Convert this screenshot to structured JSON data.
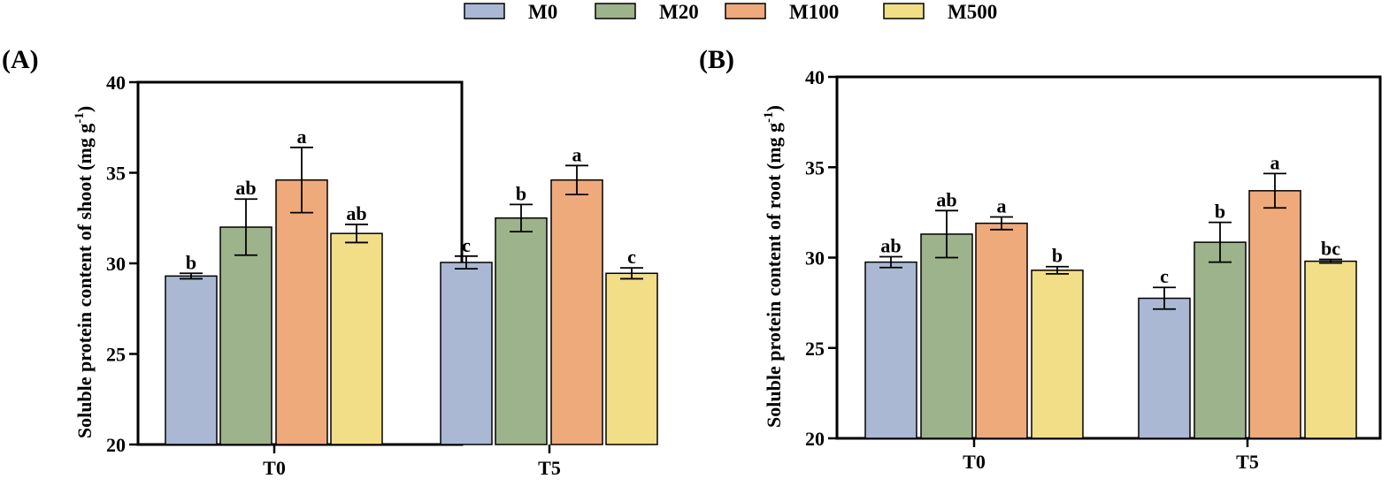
{
  "legend": {
    "entries": [
      {
        "label": "M0",
        "color": "#aab8d4"
      },
      {
        "label": "M20",
        "color": "#9db38b"
      },
      {
        "label": "M100",
        "color": "#eeaa7b"
      },
      {
        "label": "M500",
        "color": "#f2de86"
      }
    ]
  },
  "chart_data": [
    {
      "type": "bar",
      "panel_label": "(A)",
      "ylabel": "Soluble protein content of shoot (mg g",
      "ylabel_sup": "-1",
      "ylabel_close": ")",
      "ylim": [
        20,
        40
      ],
      "yticks": [
        20,
        25,
        30,
        35,
        40
      ],
      "categories": [
        "T0",
        "T5"
      ],
      "series": [
        {
          "name": "M0",
          "color": "#aab8d4",
          "values": [
            29.3,
            30.05
          ],
          "errors": [
            0.15,
            0.35
          ],
          "letters": [
            "b",
            "c"
          ]
        },
        {
          "name": "M20",
          "color": "#9db38b",
          "values": [
            32.0,
            32.5
          ],
          "errors": [
            1.55,
            0.75
          ],
          "letters": [
            "ab",
            "b"
          ]
        },
        {
          "name": "M100",
          "color": "#eeaa7b",
          "values": [
            34.6,
            34.6
          ],
          "errors": [
            1.8,
            0.8
          ],
          "letters": [
            "a",
            "a"
          ]
        },
        {
          "name": "M500",
          "color": "#f2de86",
          "values": [
            31.65,
            29.45
          ],
          "errors": [
            0.5,
            0.3
          ],
          "letters": [
            "ab",
            "c"
          ]
        }
      ]
    },
    {
      "type": "bar",
      "panel_label": "(B)",
      "ylabel": "Soluble protein content of root (mg g",
      "ylabel_sup": "-1",
      "ylabel_close": ")",
      "ylim": [
        20,
        40
      ],
      "yticks": [
        20,
        25,
        30,
        35,
        40
      ],
      "categories": [
        "T0",
        "T5"
      ],
      "series": [
        {
          "name": "M0",
          "color": "#aab8d4",
          "values": [
            29.75,
            27.75
          ],
          "errors": [
            0.3,
            0.6
          ],
          "letters": [
            "ab",
            "c"
          ]
        },
        {
          "name": "M20",
          "color": "#9db38b",
          "values": [
            31.3,
            30.85
          ],
          "errors": [
            1.3,
            1.1
          ],
          "letters": [
            "ab",
            "b"
          ]
        },
        {
          "name": "M100",
          "color": "#eeaa7b",
          "values": [
            31.9,
            33.7
          ],
          "errors": [
            0.35,
            0.95
          ],
          "letters": [
            "a",
            "a"
          ]
        },
        {
          "name": "M500",
          "color": "#f2de86",
          "values": [
            29.3,
            29.8
          ],
          "errors": [
            0.2,
            0.1
          ],
          "letters": [
            "b",
            "bc"
          ]
        }
      ]
    }
  ]
}
